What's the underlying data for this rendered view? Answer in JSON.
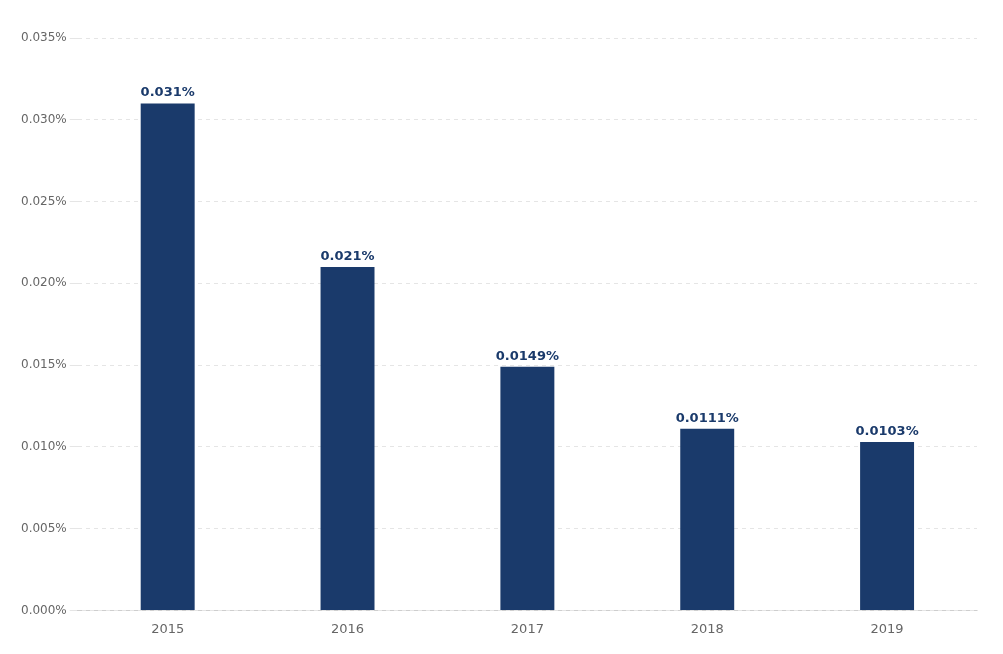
{
  "chart_data": {
    "type": "bar",
    "categories": [
      "2015",
      "2016",
      "2017",
      "2018",
      "2019"
    ],
    "values": [
      0.00031,
      0.00021,
      0.000149,
      0.000111,
      0.000103
    ],
    "value_labels": [
      "0.031%",
      "0.021%",
      "0.0149%",
      "0.0111%",
      "0.0103%"
    ],
    "color": "#1a3a6b",
    "ylim": [
      0,
      0.00035
    ],
    "yticks": [
      {
        "value": 0.0,
        "label": "0.000%"
      },
      {
        "value": 5e-05,
        "label": "0.005%"
      },
      {
        "value": 0.0001,
        "label": "0.010%"
      },
      {
        "value": 0.00015,
        "label": "0.015%"
      },
      {
        "value": 0.0002,
        "label": "0.020%"
      },
      {
        "value": 0.00025,
        "label": "0.025%"
      },
      {
        "value": 0.0003,
        "label": "0.030%"
      },
      {
        "value": 0.00035,
        "label": "0.035%"
      }
    ],
    "grid": true,
    "data_labels": true
  }
}
